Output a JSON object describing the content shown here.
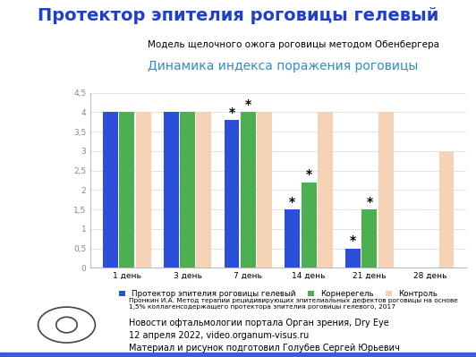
{
  "slide": {
    "title": "Протектор эпителия роговицы гелевый",
    "subtitle": "Модель щелочного ожога роговицы методом Обенбергера",
    "footer": [
      "Пронкин И.А. Метод терапии рецидивирующих эпителиальных дефектов роговицы на основе 1,5% коллагенсодержащего протектора эпителия роговицы гелевого, 2017",
      "Новости офтальмологии портала Орган зрения, Dry Eye",
      "12 апреля 2022, video.organum-visus.ru",
      "Материал и рисунок подготовил Голубев Сергей Юрьевич"
    ]
  },
  "chart_data": {
    "type": "bar",
    "title": "Динамика индекса поражения роговицы",
    "categories": [
      "1 день",
      "3 день",
      "7 день",
      "14 день",
      "21 день",
      "28 день"
    ],
    "series": [
      {
        "name": "Протектор эпителия роговицы гелевый",
        "color": "#2b4fd8",
        "values": [
          4,
          4,
          3.8,
          1.5,
          0.5,
          null
        ]
      },
      {
        "name": "Корнерегель",
        "color": "#4caf50",
        "values": [
          4,
          4,
          4,
          2.2,
          1.5,
          null
        ]
      },
      {
        "name": "Контроль",
        "color": "#f6d3b5",
        "values": [
          4,
          4,
          4,
          4,
          4,
          3
        ]
      }
    ],
    "annotations": [
      {
        "series": 0,
        "category": 2,
        "text": "*"
      },
      {
        "series": 1,
        "category": 2,
        "text": "*"
      },
      {
        "series": 0,
        "category": 3,
        "text": "*"
      },
      {
        "series": 1,
        "category": 3,
        "text": "*"
      },
      {
        "series": 0,
        "category": 4,
        "text": "*"
      },
      {
        "series": 1,
        "category": 4,
        "text": "*"
      }
    ],
    "ylim": [
      0,
      4.5
    ],
    "yticks": [
      0,
      {
        "value": 0.5,
        "label": "0,5"
      },
      1,
      {
        "value": 1.5,
        "label": "1,5"
      },
      2,
      {
        "value": 2.5,
        "label": "2,5"
      },
      3,
      {
        "value": 3.5,
        "label": "3,5"
      },
      4,
      {
        "value": 4.5,
        "label": "4,5"
      }
    ],
    "grid": true,
    "legend": "below"
  }
}
